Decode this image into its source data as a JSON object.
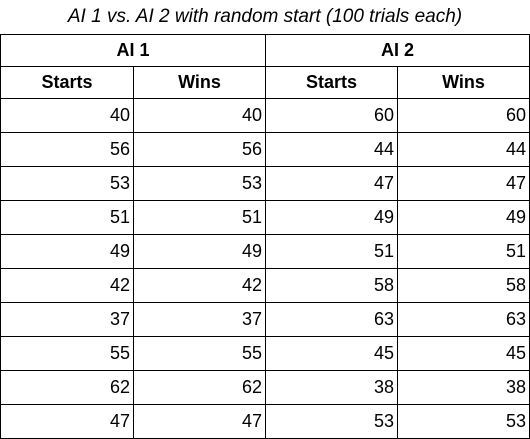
{
  "table": {
    "title": "AI 1 vs. AI 2 with random start (100 trials each)",
    "groups": [
      "AI 1",
      "AI 2"
    ],
    "columns": [
      "Starts",
      "Wins",
      "Starts",
      "Wins"
    ],
    "rows": [
      [
        "40",
        "40",
        "60",
        "60"
      ],
      [
        "56",
        "56",
        "44",
        "44"
      ],
      [
        "53",
        "53",
        "47",
        "47"
      ],
      [
        "51",
        "51",
        "49",
        "49"
      ],
      [
        "49",
        "49",
        "51",
        "51"
      ],
      [
        "42",
        "42",
        "58",
        "58"
      ],
      [
        "37",
        "37",
        "63",
        "63"
      ],
      [
        "55",
        "55",
        "45",
        "45"
      ],
      [
        "62",
        "62",
        "38",
        "38"
      ],
      [
        "47",
        "47",
        "53",
        "53"
      ]
    ]
  }
}
